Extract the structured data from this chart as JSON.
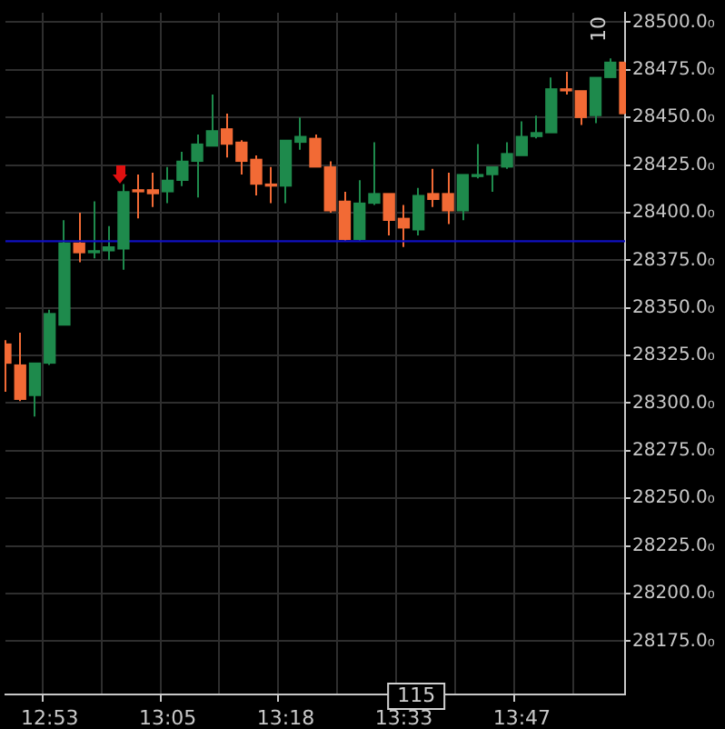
{
  "chart_data": {
    "type": "candlestick",
    "categories": [
      null,
      null,
      null,
      "12:53",
      null,
      null,
      null,
      null,
      null,
      null,
      null,
      "13:05",
      null,
      null,
      null,
      null,
      null,
      null,
      null,
      "13:18",
      null,
      null,
      null,
      null,
      null,
      null,
      null,
      "13:33",
      null,
      null,
      null,
      null,
      null,
      null,
      null,
      "13:47",
      null,
      null,
      null,
      null,
      null,
      null,
      null
    ],
    "ohlc": [
      [
        28331,
        28333,
        28306,
        28321
      ],
      [
        28320,
        28337,
        28301,
        28302
      ],
      [
        28304,
        28321,
        28293,
        28321
      ],
      [
        28321,
        28349,
        28320,
        28347
      ],
      [
        28341,
        28396,
        28341,
        28384
      ],
      [
        28384,
        28400,
        28374,
        28379
      ],
      [
        28379,
        28406,
        28376,
        28380
      ],
      [
        28380,
        28393,
        28375,
        28382
      ],
      [
        28381,
        28415,
        28370,
        28411
      ],
      [
        28412,
        28420,
        28397,
        28411
      ],
      [
        28412,
        28421,
        28403,
        28410
      ],
      [
        28411,
        28424,
        28405,
        28417
      ],
      [
        28417,
        28432,
        28414,
        28427
      ],
      [
        28427,
        28441,
        28408,
        28436
      ],
      [
        28435,
        28462,
        28435,
        28443
      ],
      [
        28444,
        28452,
        28429,
        28436
      ],
      [
        28437,
        28438,
        28420,
        28427
      ],
      [
        28428,
        28430,
        28409,
        28415
      ],
      [
        28415,
        28424,
        28405,
        28414
      ],
      [
        28414,
        28438,
        28405,
        28438
      ],
      [
        28437,
        28450,
        28433,
        28440
      ],
      [
        28439,
        28441,
        28424,
        28424
      ],
      [
        28424,
        28427,
        28400,
        28401
      ],
      [
        28406,
        28411,
        28385,
        28386
      ],
      [
        28386,
        28417,
        28385,
        28405
      ],
      [
        28405,
        28437,
        28404,
        28410
      ],
      [
        28410,
        28410,
        28388,
        28396
      ],
      [
        28397,
        28404,
        28382,
        28392
      ],
      [
        28391,
        28413,
        28388,
        28409
      ],
      [
        28410,
        28423,
        28403,
        28407
      ],
      [
        28410,
        28421,
        28394,
        28401
      ],
      [
        28401,
        28420,
        28396,
        28420
      ],
      [
        28419,
        28436,
        28418,
        28420
      ],
      [
        28420,
        28424,
        28411,
        28424
      ],
      [
        28424,
        28437,
        28423,
        28431
      ],
      [
        28430,
        28448,
        28430,
        28440
      ],
      [
        28440,
        28451,
        28439,
        28442
      ],
      [
        28442,
        28471,
        28442,
        28465
      ],
      [
        28465,
        28474,
        28462,
        28464
      ],
      [
        28464,
        28464,
        28446,
        28450
      ],
      [
        28451,
        28471,
        28447,
        28471
      ],
      [
        28471,
        28481,
        28471,
        28479
      ],
      [
        28479,
        28479,
        28452,
        28452
      ]
    ],
    "colors": [
      "#f26a35",
      "#f26a35",
      "#1e8a4c",
      "#1e8a4c",
      "#1e8a4c",
      "#f26a35",
      "#1e8a4c",
      "#1e8a4c",
      "#1e8a4c",
      "#f26a35",
      "#f26a35",
      "#1e8a4c",
      "#1e8a4c",
      "#1e8a4c",
      "#1e8a4c",
      "#f26a35",
      "#f26a35",
      "#f26a35",
      "#f26a35",
      "#1e8a4c",
      "#1e8a4c",
      "#f26a35",
      "#f26a35",
      "#f26a35",
      "#1e8a4c",
      "#1e8a4c",
      "#f26a35",
      "#f26a35",
      "#1e8a4c",
      "#f26a35",
      "#f26a35",
      "#1e8a4c",
      "#1e8a4c",
      "#1e8a4c",
      "#1e8a4c",
      "#1e8a4c",
      "#1e8a4c",
      "#1e8a4c",
      "#f26a35",
      "#f26a35",
      "#1e8a4c",
      "#1e8a4c",
      "#f26a35"
    ],
    "ylim": [
      28147,
      28505
    ],
    "yticks": [
      {
        "value": 28175,
        "label": "28175.0₀"
      },
      {
        "value": 28200,
        "label": "28200.0₀"
      },
      {
        "value": 28225,
        "label": "28225.0₀"
      },
      {
        "value": 28250,
        "label": "28250.0₀"
      },
      {
        "value": 28275,
        "label": "28275.0₀"
      },
      {
        "value": 28300,
        "label": "28300.0₀"
      },
      {
        "value": 28325,
        "label": "28325.0₀"
      },
      {
        "value": 28350,
        "label": "28350.0₀"
      },
      {
        "value": 28375,
        "label": "28375.0₀"
      },
      {
        "value": 28400,
        "label": "28400.0₀"
      },
      {
        "value": 28425,
        "label": "28425.0₀"
      },
      {
        "value": 28450,
        "label": "28450.0₀"
      },
      {
        "value": 28475,
        "label": "28475.0₀"
      },
      {
        "value": 28500,
        "label": "28500.0₀"
      }
    ],
    "ref_lines": [
      {
        "axis": "y",
        "value": 28385,
        "color": "#1010c0"
      }
    ],
    "annotations": [
      "10",
      "115"
    ],
    "grid": true,
    "legend": false
  }
}
